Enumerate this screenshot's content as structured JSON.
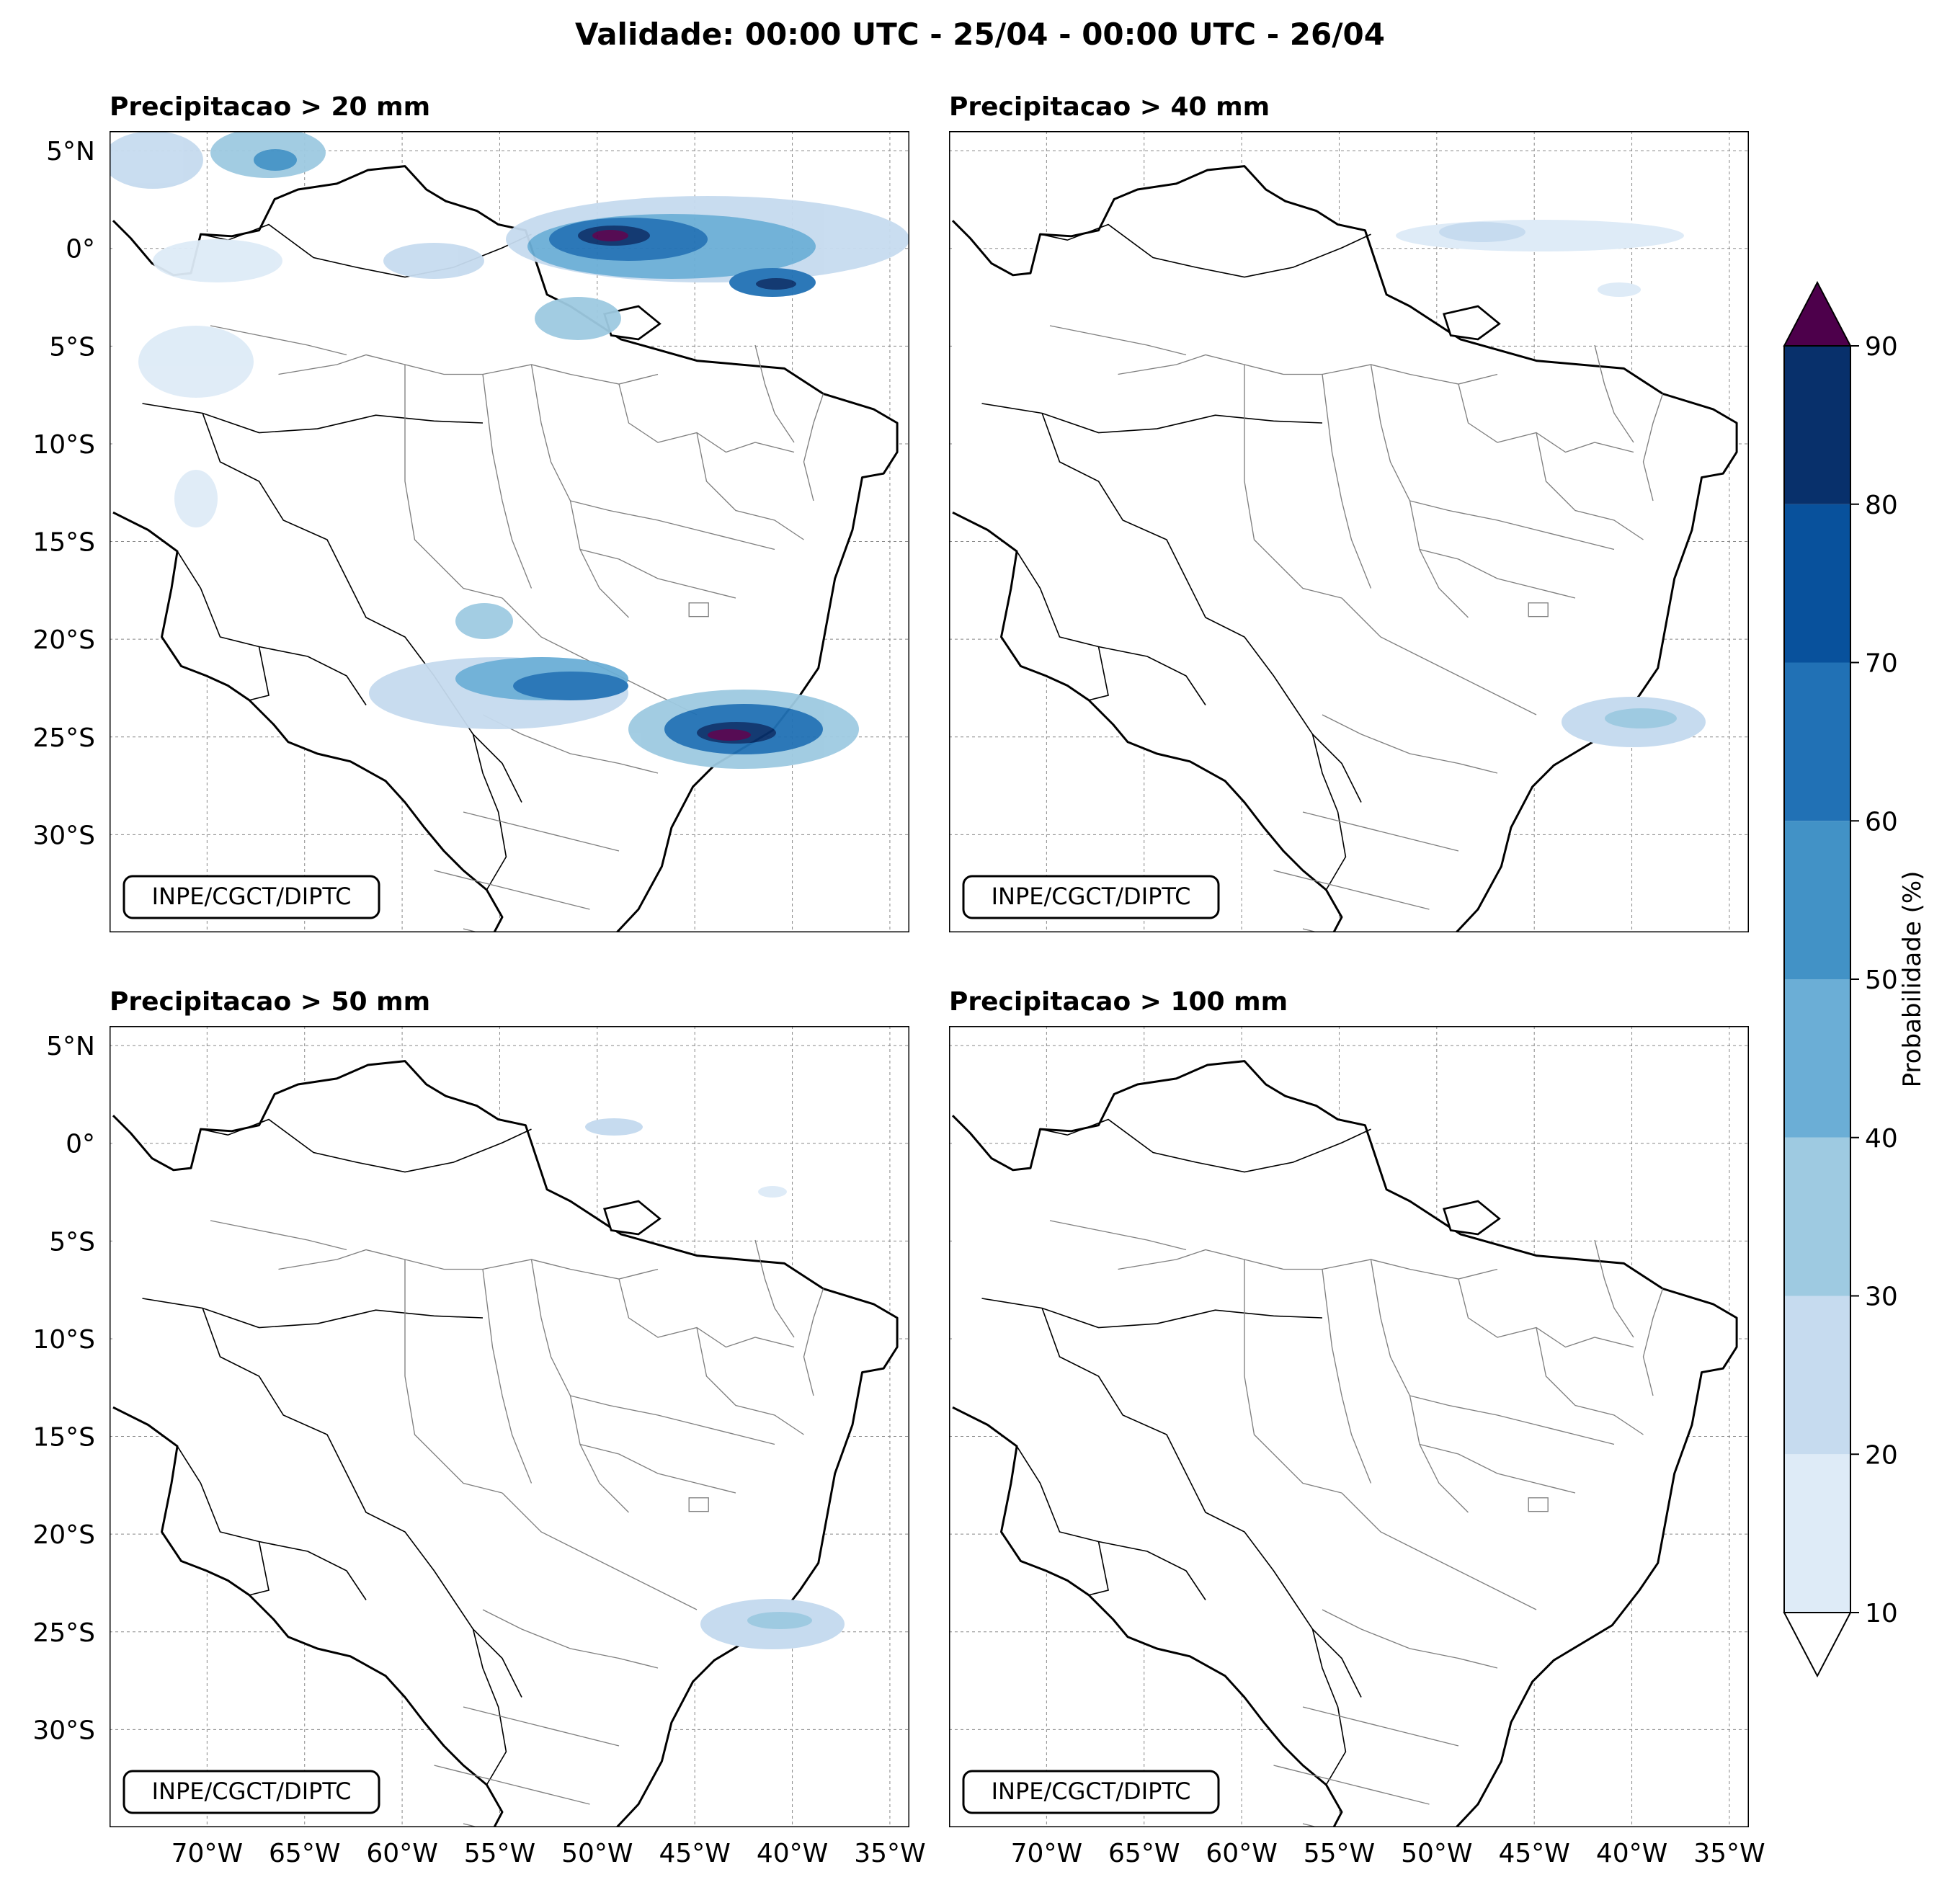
{
  "figure": {
    "title": "Validade: 00:00 UTC - 25/04 - 00:00 UTC - 26/04",
    "credit": "INPE/CGCT/DIPTC"
  },
  "panels": [
    {
      "title": "Precipitacao > 20 mm"
    },
    {
      "title": "Precipitacao > 40 mm"
    },
    {
      "title": "Precipitacao > 50 mm"
    },
    {
      "title": "Precipitacao > 100 mm"
    }
  ],
  "axes": {
    "lon_labels": [
      "70°W",
      "65°W",
      "60°W",
      "55°W",
      "50°W",
      "45°W",
      "40°W",
      "35°W"
    ],
    "lat_labels": [
      "5°N",
      "0°",
      "5°S",
      "10°S",
      "15°S",
      "20°S",
      "25°S",
      "30°S"
    ]
  },
  "colorbar": {
    "label": "Probabilidade (%)",
    "ticks": [
      "10",
      "20",
      "30",
      "40",
      "50",
      "60",
      "70",
      "80",
      "90"
    ],
    "colors": [
      "#deebf7",
      "#c6dbef",
      "#9ecae1",
      "#6baed6",
      "#4292c6",
      "#2171b5",
      "#08519c",
      "#08306b"
    ],
    "under_color": "#ffffff",
    "over_color": "#4d004b"
  },
  "map": {
    "extent": {
      "lon_min": -75,
      "lon_max": -34,
      "lat_min": -35,
      "lat_max": 6
    },
    "grid": true,
    "land_color": "#ffffff",
    "ocean_color": "#ffffff",
    "coast_color": "#000000",
    "border_color": "#7a7a7a"
  }
}
